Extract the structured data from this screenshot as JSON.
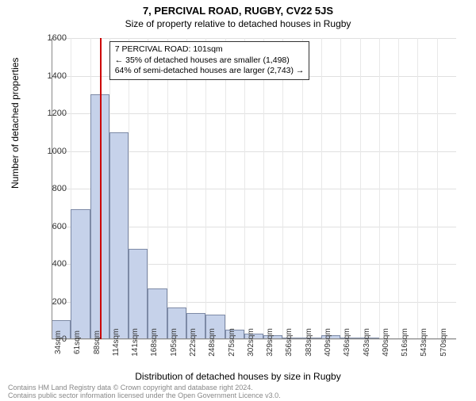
{
  "titles": {
    "main": "7, PERCIVAL ROAD, RUGBY, CV22 5JS",
    "sub": "Size of property relative to detached houses in Rugby"
  },
  "axes": {
    "ylabel": "Number of detached properties",
    "xlabel": "Distribution of detached houses by size in Rugby",
    "ylim_max": 1600,
    "ytick_step": 200,
    "yticks": [
      0,
      200,
      400,
      600,
      800,
      1000,
      1200,
      1400,
      1600
    ],
    "xticks": [
      "34sqm",
      "61sqm",
      "88sqm",
      "114sqm",
      "141sqm",
      "168sqm",
      "195sqm",
      "222sqm",
      "248sqm",
      "275sqm",
      "302sqm",
      "329sqm",
      "356sqm",
      "383sqm",
      "409sqm",
      "436sqm",
      "463sqm",
      "490sqm",
      "516sqm",
      "543sqm",
      "570sqm"
    ]
  },
  "chart": {
    "type": "histogram",
    "bar_fill": "#c6d2ea",
    "bar_border": "#7d8aa6",
    "grid_color": "#e0e0e0",
    "background_color": "#ffffff",
    "marker_color": "#cc0000",
    "marker_bin_index": 2.5,
    "values": [
      100,
      690,
      1300,
      1100,
      480,
      270,
      170,
      140,
      130,
      50,
      30,
      20,
      10,
      10,
      20,
      10,
      10,
      0,
      0,
      0,
      0
    ]
  },
  "annotation": {
    "line1": "7 PERCIVAL ROAD: 101sqm",
    "line2": "← 35% of detached houses are smaller (1,498)",
    "line3": "64% of semi-detached houses are larger (2,743) →"
  },
  "footer": {
    "line1": "Contains HM Land Registry data © Crown copyright and database right 2024.",
    "line2": "Contains public sector information licensed under the Open Government Licence v3.0."
  }
}
